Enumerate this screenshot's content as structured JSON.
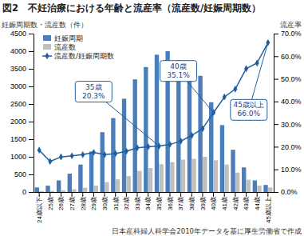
{
  "chart_data": {
    "type": "bar",
    "title": "図2　不妊治療における年齢と流産率（流産数/妊娠周期数）",
    "y_label": "妊娠周期数・流産数（件）",
    "y2_label": "流産率",
    "source": "日本産科婦人科学会2010年データを基に厚生労働省で作成",
    "categories": [
      "24歳以下",
      "25歳",
      "26歳",
      "27歳",
      "28歳",
      "29歳",
      "30歳",
      "31歳",
      "32歳",
      "33歳",
      "34歳",
      "35歳",
      "36歳",
      "37歳",
      "38歳",
      "39歳",
      "40歳",
      "41歳",
      "42歳",
      "43歳",
      "44歳",
      "45歳以上"
    ],
    "series": [
      {
        "name": "妊娠周期",
        "type": "bar",
        "color": "#4a7ebb",
        "values": [
          130,
          180,
          330,
          520,
          780,
          1150,
          1700,
          2100,
          2650,
          3200,
          3550,
          3900,
          4000,
          3750,
          3450,
          3300,
          2550,
          1900,
          1200,
          700,
          330,
          200
        ]
      },
      {
        "name": "流産数",
        "type": "bar",
        "color": "#bfbfbf",
        "values": [
          25,
          30,
          50,
          80,
          120,
          180,
          280,
          360,
          450,
          600,
          680,
          790,
          850,
          920,
          940,
          1000,
          900,
          780,
          550,
          350,
          180,
          130
        ]
      },
      {
        "name": "流産数/妊娠周期数",
        "type": "line",
        "axis": "y2",
        "color": "#1f5fa0",
        "marker": "diamond",
        "values": [
          18.5,
          13.5,
          15.5,
          16,
          16.5,
          17.5,
          16.5,
          17,
          18,
          19.5,
          20,
          20.3,
          21,
          22.5,
          25,
          28,
          35.1,
          42,
          45.5,
          54.5,
          57,
          66.0
        ]
      }
    ],
    "ylim": [
      0,
      4500
    ],
    "yticks": [
      0,
      500,
      1000,
      1500,
      2000,
      2500,
      3000,
      3500,
      4000,
      4500
    ],
    "y2lim": [
      0,
      70
    ],
    "y2ticks": [
      {
        "value": 0,
        "label": "0.0%"
      },
      {
        "value": 10,
        "label": "10.0%"
      },
      {
        "value": 20,
        "label": "20.0%"
      },
      {
        "value": 30,
        "label": "30.0%"
      },
      {
        "value": 40,
        "label": "40.0%"
      },
      {
        "value": 50,
        "label": "50.0%"
      },
      {
        "value": 60,
        "label": "60.0%"
      },
      {
        "value": 70,
        "label": "70.0%"
      }
    ],
    "grid": false,
    "legend": "upper left",
    "annotations": [
      {
        "category": "35歳",
        "lines": [
          "35歳",
          "20.3%"
        ]
      },
      {
        "category": "40歳",
        "lines": [
          "40歳",
          "35.1%"
        ]
      },
      {
        "category": "45歳以上",
        "lines": [
          "45歳以上",
          "66.0%"
        ]
      }
    ]
  }
}
